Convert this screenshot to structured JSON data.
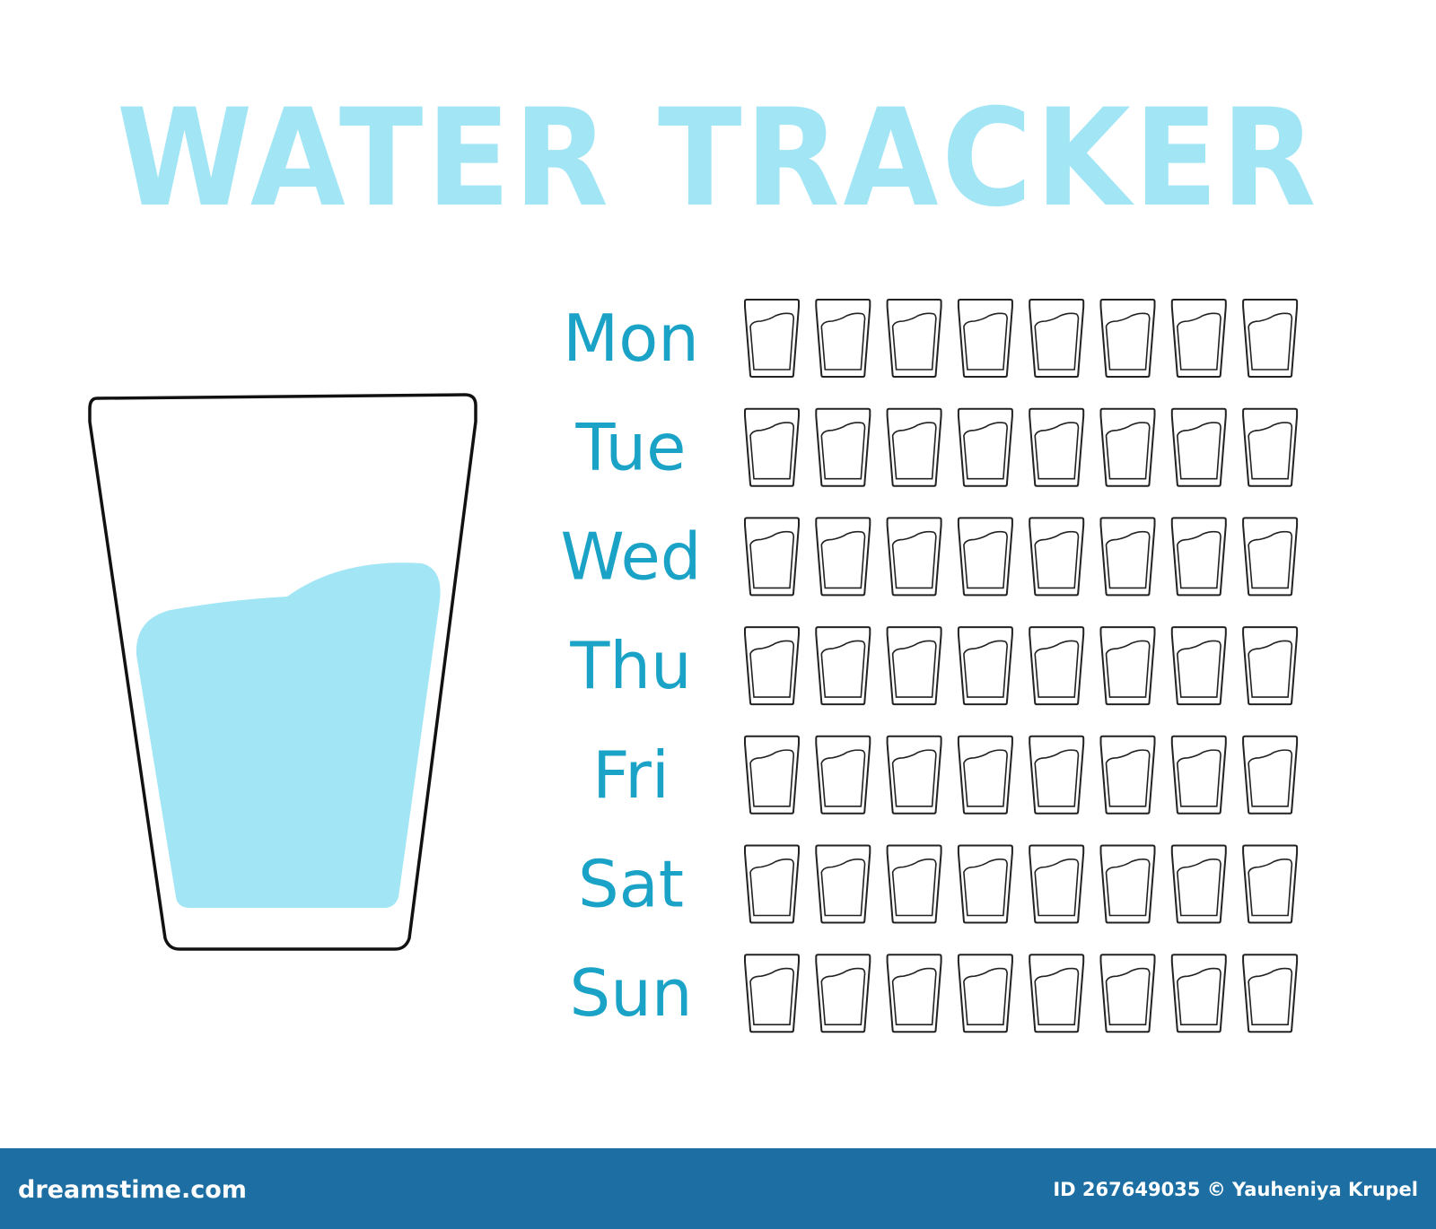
{
  "header": {
    "title": "WATER TRACKER"
  },
  "days": [
    "Mon",
    "Tue",
    "Wed",
    "Thu",
    "Fri",
    "Sat",
    "Sun"
  ],
  "footer": {
    "site": "dreamstime.com",
    "credit": "ID 267649035 © Yauheniya Krupel"
  }
}
